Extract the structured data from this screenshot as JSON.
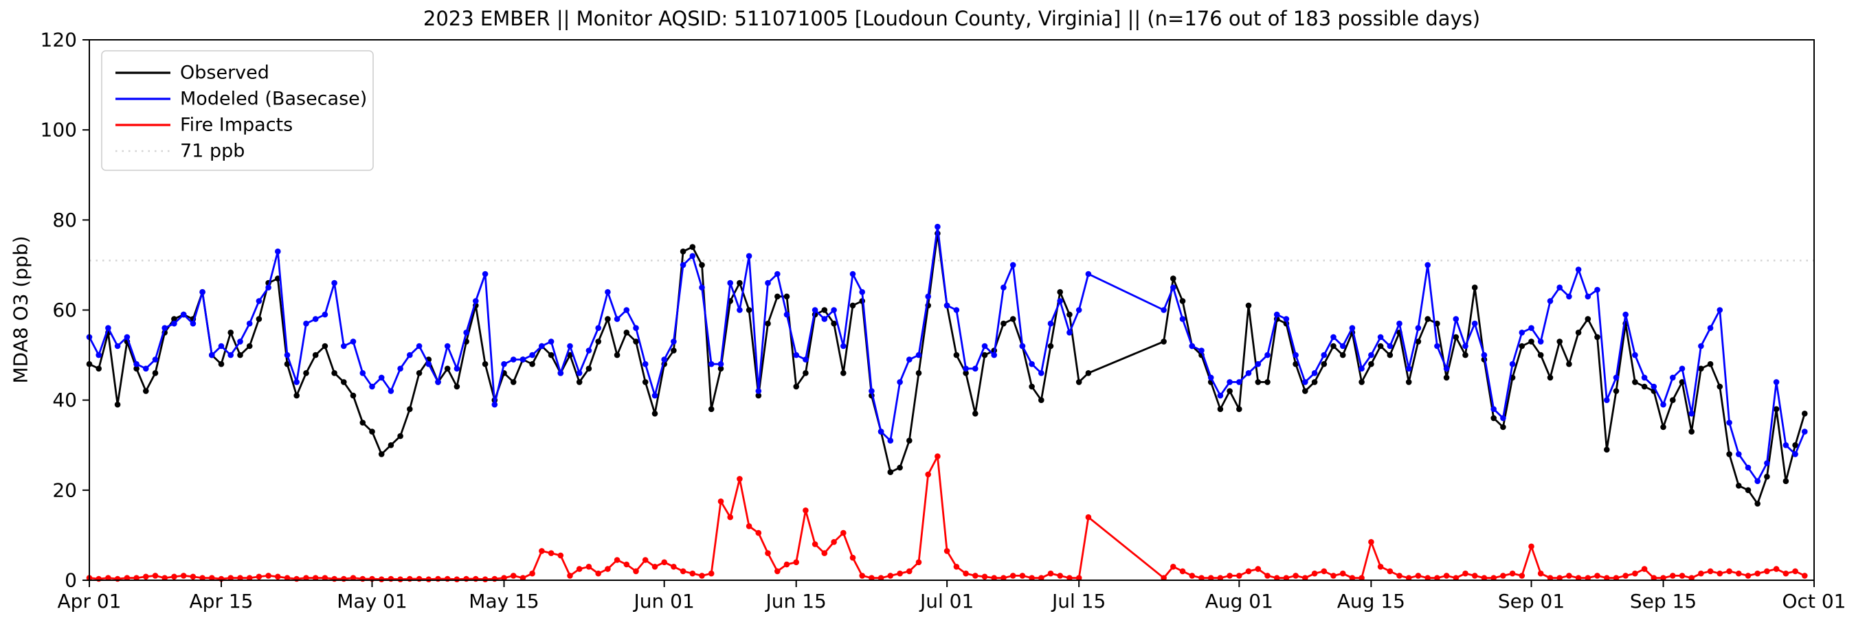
{
  "chart_data": {
    "type": "line",
    "title": "2023 EMBER || Monitor AQSID: 511071005 [Loudoun County, Virginia] || (n=176 out of 183 possible days)",
    "xlabel": "",
    "ylabel": "MDA8 O3 (ppb)",
    "ylim": [
      0,
      120
    ],
    "x_range": [
      0,
      183
    ],
    "x_unit": "days since Apr 01",
    "grid": false,
    "legend_position": "upper-left",
    "yticks": [
      0,
      20,
      40,
      60,
      80,
      100,
      120
    ],
    "xticks": [
      {
        "label": "Apr 01",
        "day": 0
      },
      {
        "label": "Apr 15",
        "day": 14
      },
      {
        "label": "May 01",
        "day": 30
      },
      {
        "label": "May 15",
        "day": 44
      },
      {
        "label": "Jun 01",
        "day": 61
      },
      {
        "label": "Jun 15",
        "day": 75
      },
      {
        "label": "Jul 01",
        "day": 91
      },
      {
        "label": "Jul 15",
        "day": 105
      },
      {
        "label": "Aug 01",
        "day": 122
      },
      {
        "label": "Aug 15",
        "day": 136
      },
      {
        "label": "Sep 01",
        "day": 153
      },
      {
        "label": "Sep 15",
        "day": 167
      },
      {
        "label": "Oct 01",
        "day": 183
      }
    ],
    "ref_line": {
      "label": "71 ppb",
      "value": 71,
      "color": "#d3d3d3",
      "style": "dotted"
    },
    "series": [
      {
        "name": "Observed",
        "color": "#000000",
        "marker": "circle",
        "values": [
          48,
          47,
          55,
          39,
          53,
          47,
          42,
          46,
          55,
          58,
          59,
          58,
          64,
          50,
          48,
          55,
          50,
          52,
          58,
          66,
          67,
          48,
          41,
          46,
          50,
          52,
          46,
          44,
          41,
          35,
          33,
          28,
          30,
          32,
          38,
          46,
          49,
          44,
          47,
          43,
          53,
          61,
          48,
          40,
          46,
          44,
          49,
          48,
          52,
          50,
          46,
          50,
          44,
          47,
          53,
          58,
          50,
          55,
          53,
          44,
          37,
          48,
          51,
          73,
          74,
          70,
          38,
          47,
          62,
          66,
          60,
          41,
          57,
          63,
          63,
          43,
          46,
          59,
          60,
          57,
          46,
          61,
          62,
          41,
          33,
          24,
          25,
          31,
          46,
          61,
          77,
          61,
          50,
          46,
          37,
          50,
          51,
          57,
          58,
          52,
          43,
          40,
          52,
          64,
          59,
          44,
          46,
          null,
          null,
          null,
          null,
          null,
          null,
          null,
          53,
          67,
          62,
          52,
          50,
          44,
          38,
          42,
          38,
          61,
          44,
          44,
          58,
          57,
          48,
          42,
          44,
          48,
          52,
          50,
          55,
          44,
          48,
          52,
          50,
          55,
          44,
          53,
          58,
          57,
          45,
          54,
          50,
          65,
          49,
          36,
          34,
          45,
          52,
          53,
          50,
          45,
          53,
          48,
          55,
          58,
          54,
          29,
          42,
          57,
          44,
          43,
          42,
          34,
          40,
          44,
          33,
          47,
          48,
          43,
          28,
          21,
          20,
          17,
          23,
          38,
          22,
          30,
          37
        ]
      },
      {
        "name": "Modeled (Basecase)",
        "color": "#0000ff",
        "marker": "circle",
        "values": [
          54,
          50,
          56,
          52,
          54,
          48,
          47,
          49,
          56,
          57,
          59,
          57,
          64,
          50,
          52,
          50,
          53,
          57,
          62,
          65,
          73,
          50,
          44,
          57,
          58,
          59,
          66,
          52,
          53,
          46,
          43,
          45,
          42,
          47,
          50,
          52,
          48,
          44,
          52,
          47,
          55,
          62,
          68,
          39,
          48,
          49,
          49,
          50,
          52,
          53,
          46,
          52,
          46,
          51,
          56,
          64,
          58,
          60,
          56,
          48,
          41,
          49,
          53,
          70,
          72,
          65,
          48,
          48,
          66,
          60,
          72,
          42,
          66,
          68,
          59,
          50,
          49,
          60,
          58,
          60,
          52,
          68,
          64,
          42,
          33,
          31,
          44,
          49,
          50,
          63,
          78.5,
          61,
          60,
          47,
          47,
          52,
          50,
          65,
          70,
          52,
          48,
          46,
          57,
          62,
          55,
          60,
          68,
          null,
          null,
          null,
          null,
          null,
          null,
          null,
          60,
          65,
          58,
          52,
          51,
          45,
          41,
          44,
          44,
          46,
          48,
          50,
          59,
          58,
          50,
          44,
          46,
          50,
          54,
          52,
          56,
          47,
          50,
          54,
          52,
          57,
          47,
          56,
          70,
          52,
          47,
          58,
          52,
          57,
          50,
          38,
          36,
          48,
          55,
          56,
          53,
          62,
          65,
          63,
          69,
          63,
          64.5,
          40,
          45,
          59,
          50,
          45,
          43,
          39,
          45,
          47,
          37,
          52,
          56,
          60,
          35,
          28,
          25,
          22,
          26,
          44,
          30,
          28,
          33
        ]
      },
      {
        "name": "Fire Impacts",
        "color": "#ff0000",
        "marker": "circle",
        "values": [
          0.5,
          0.3,
          0.5,
          0.3,
          0.5,
          0.5,
          0.8,
          1,
          0.5,
          0.8,
          1,
          0.8,
          0.5,
          0.5,
          0.3,
          0.5,
          0.5,
          0.5,
          0.8,
          1,
          0.8,
          0.5,
          0.3,
          0.5,
          0.5,
          0.5,
          0.3,
          0.3,
          0.5,
          0.3,
          0.3,
          0.2,
          0.3,
          0.2,
          0.3,
          0.3,
          0.2,
          0.3,
          0.3,
          0.2,
          0.3,
          0.3,
          0.2,
          0.3,
          0.5,
          1,
          0.5,
          1.5,
          6.5,
          6,
          5.5,
          1,
          2.5,
          3,
          1.5,
          2.5,
          4.5,
          3.5,
          2,
          4.5,
          3,
          4,
          3,
          2,
          1.5,
          1,
          1.5,
          17.5,
          14,
          22.5,
          12,
          10.5,
          6,
          2,
          3.5,
          4,
          15.5,
          8,
          6,
          8.5,
          10.5,
          5,
          1,
          0.5,
          0.5,
          1,
          1.5,
          2,
          4,
          23.5,
          27.5,
          6.5,
          3,
          1.5,
          1,
          0.8,
          0.5,
          0.5,
          1,
          1,
          0.5,
          0.5,
          1.5,
          1,
          0.5,
          0.5,
          14,
          null,
          null,
          null,
          null,
          null,
          null,
          null,
          0.5,
          3,
          2,
          1,
          0.5,
          0.5,
          0.5,
          1,
          1,
          2,
          2.5,
          1,
          0.5,
          0.5,
          1,
          0.5,
          1.5,
          2,
          1,
          1.5,
          0.5,
          0.5,
          8.5,
          3,
          2,
          1,
          0.5,
          1,
          0.5,
          0.5,
          1,
          0.5,
          1.5,
          1,
          0.5,
          0.5,
          1,
          1.5,
          1,
          7.5,
          1.5,
          0.5,
          0.5,
          1,
          0.5,
          0.5,
          1,
          0.5,
          0.5,
          1,
          1.5,
          2.5,
          0.5,
          0.5,
          1,
          1,
          0.5,
          1.5,
          2,
          1.5,
          2,
          1.5,
          1,
          1.5,
          2,
          2.5,
          1.5,
          2,
          1
        ]
      }
    ],
    "legend": {
      "items": [
        "Observed",
        "Modeled (Basecase)",
        "Fire Impacts",
        "71 ppb"
      ]
    }
  }
}
